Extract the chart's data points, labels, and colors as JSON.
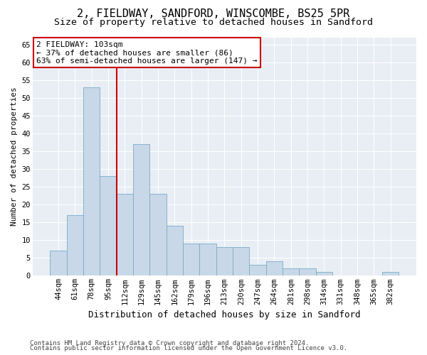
{
  "title1": "2, FIELDWAY, SANDFORD, WINSCOMBE, BS25 5PR",
  "title2": "Size of property relative to detached houses in Sandford",
  "xlabel": "Distribution of detached houses by size in Sandford",
  "ylabel": "Number of detached properties",
  "categories": [
    "44sqm",
    "61sqm",
    "78sqm",
    "95sqm",
    "112sqm",
    "129sqm",
    "145sqm",
    "162sqm",
    "179sqm",
    "196sqm",
    "213sqm",
    "230sqm",
    "247sqm",
    "264sqm",
    "281sqm",
    "298sqm",
    "314sqm",
    "331sqm",
    "348sqm",
    "365sqm",
    "382sqm"
  ],
  "values": [
    7,
    17,
    53,
    28,
    23,
    37,
    23,
    14,
    9,
    9,
    8,
    8,
    3,
    4,
    2,
    2,
    1,
    0,
    0,
    0,
    1
  ],
  "bar_color": "#c8d8e8",
  "bar_edge_color": "#7aaac8",
  "vline_x_index": 3,
  "vline_color": "#cc0000",
  "annotation_line1": "2 FIELDWAY: 103sqm",
  "annotation_line2": "← 37% of detached houses are smaller (86)",
  "annotation_line3": "63% of semi-detached houses are larger (147) →",
  "annotation_box_color": "#ffffff",
  "annotation_border_color": "#cc0000",
  "ylim": [
    0,
    67
  ],
  "yticks": [
    0,
    5,
    10,
    15,
    20,
    25,
    30,
    35,
    40,
    45,
    50,
    55,
    60,
    65
  ],
  "footer1": "Contains HM Land Registry data © Crown copyright and database right 2024.",
  "footer2": "Contains public sector information licensed under the Open Government Licence v3.0.",
  "bg_color": "#ffffff",
  "plot_bg_color": "#e8eef4",
  "title1_fontsize": 11,
  "title2_fontsize": 9.5,
  "xlabel_fontsize": 9,
  "ylabel_fontsize": 8,
  "tick_fontsize": 7.5,
  "footer_fontsize": 6.5,
  "annotation_fontsize": 8
}
